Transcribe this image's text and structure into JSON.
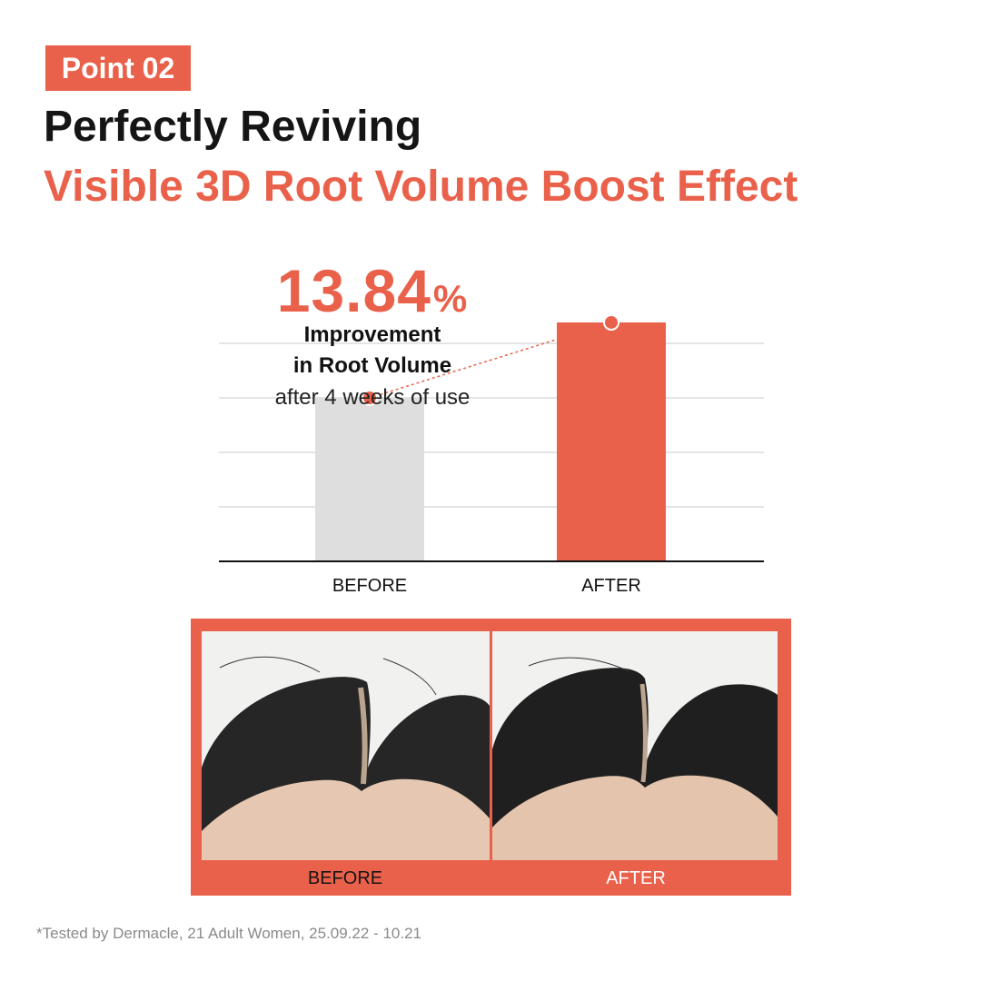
{
  "badge": "Point 02",
  "headline": {
    "line1": "Perfectly Reviving",
    "line2": "Visible 3D Root Volume Boost Effect"
  },
  "colors": {
    "accent": "#e9614a",
    "before_bar": "#dedede",
    "grid": "#c8c8c8",
    "text": "#151515"
  },
  "callout": {
    "value": "13.84",
    "unit": "%",
    "line1": "Improvement",
    "line2": "in Root Volume",
    "line3": "after 4 weeks of use"
  },
  "chart_data": {
    "type": "bar",
    "categories": [
      "BEFORE",
      "AFTER"
    ],
    "values": [
      100,
      113.84
    ],
    "ylim": [
      70,
      120
    ],
    "grid": true,
    "annotation": "13.84% Improvement in Root Volume after 4 weeks of use",
    "bar_colors": [
      "#dedede",
      "#e9614a"
    ]
  },
  "photos": {
    "before_label": "BEFORE",
    "after_label": "AFTER"
  },
  "footnote": "*Tested by Dermacle, 21 Adult Women, 25.09.22 - 10.21"
}
